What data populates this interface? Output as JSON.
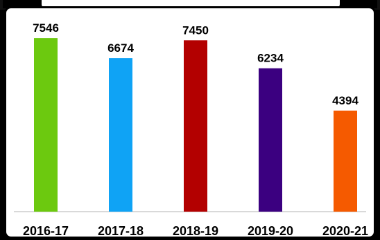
{
  "chart_data": {
    "type": "bar",
    "categories": [
      "2016-17",
      "2017-18",
      "2018-19",
      "2019-20",
      "2020-21"
    ],
    "values": [
      7546,
      6674,
      7450,
      6234,
      4394
    ],
    "colors": [
      "#6cc90f",
      "#0fa3f5",
      "#b30000",
      "#3b0080",
      "#f55a00"
    ],
    "ylim": [
      0,
      8000
    ],
    "grid": false,
    "legend": "none",
    "data_labels": true
  }
}
